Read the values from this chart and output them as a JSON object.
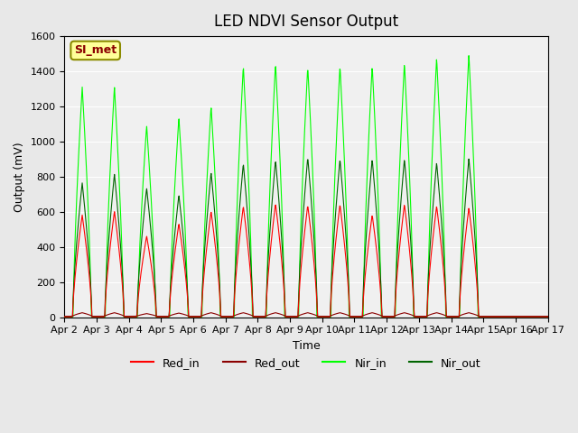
{
  "title": "LED NDVI Sensor Output",
  "xlabel": "Time",
  "ylabel": "Output (mV)",
  "ylim": [
    0,
    1600
  ],
  "yticks": [
    0,
    200,
    400,
    600,
    800,
    1000,
    1200,
    1400,
    1600
  ],
  "xlabels": [
    "Apr 2",
    "Apr 3",
    "Apr 4",
    "Apr 5",
    "Apr 6",
    "Apr 7",
    "Apr 8",
    "Apr 9",
    "Apr 10",
    "Apr 11",
    "Apr 12",
    "Apr 13",
    "Apr 14",
    "Apr 15",
    "Apr 16",
    "Apr 17"
  ],
  "legend_labels": [
    "Red_in",
    "Red_out",
    "Nir_in",
    "Nir_out"
  ],
  "legend_colors": [
    "#ff0000",
    "#8b0000",
    "#00ff00",
    "#006400"
  ],
  "color_red_in": "#ff0000",
  "color_red_out": "#8b0000",
  "color_nir_in": "#00ff00",
  "color_nir_out": "#006400",
  "annotation_text": "SI_met",
  "annotation_facecolor": "#ffff99",
  "annotation_edgecolor": "#8b8b00",
  "annotation_textcolor": "#8b0000",
  "background_color": "#e8e8e8",
  "plot_bg_color": "#f0f0f0",
  "peaks_red_in": [
    580,
    600,
    460,
    530,
    600,
    630,
    645,
    635,
    640,
    580,
    640,
    630,
    620
  ],
  "peaks_nir_in": [
    1310,
    1310,
    1090,
    1135,
    1200,
    1430,
    1445,
    1425,
    1430,
    1430,
    1445,
    1475,
    1495
  ],
  "peaks_nir_out": [
    760,
    810,
    730,
    690,
    820,
    870,
    890,
    905,
    895,
    895,
    895,
    875,
    900
  ],
  "peaks_red_out": [
    20,
    20,
    15,
    18,
    20,
    20,
    20,
    20,
    20,
    20,
    20,
    20,
    20
  ]
}
